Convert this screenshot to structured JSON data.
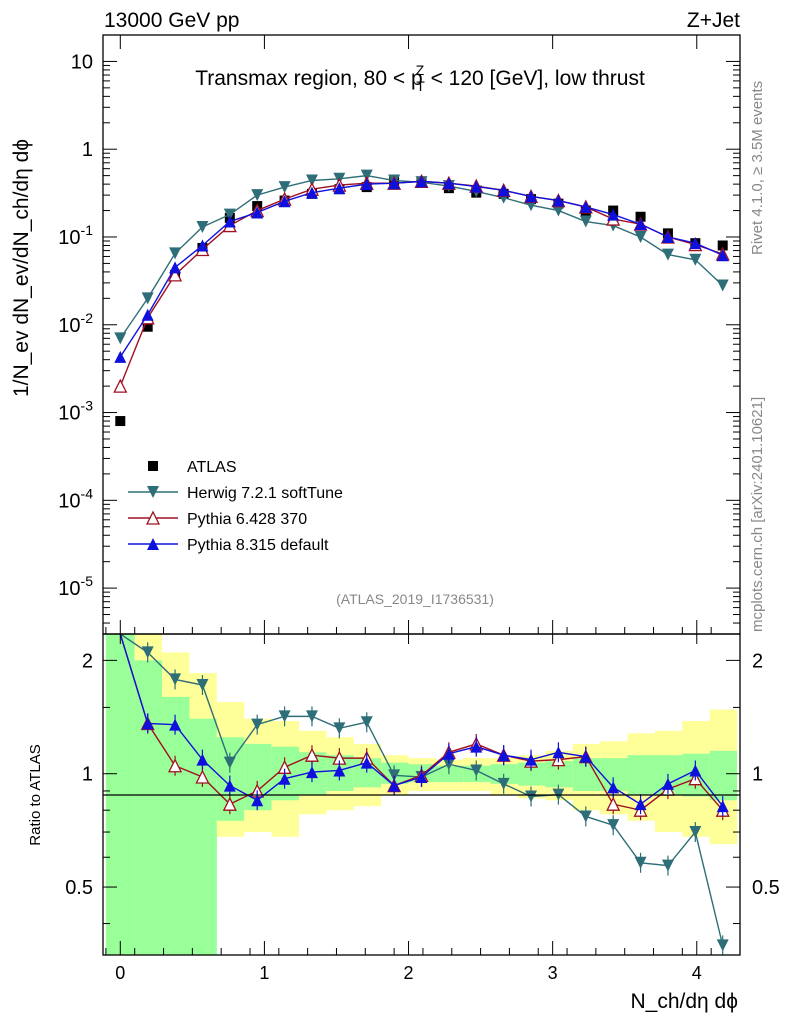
{
  "header": {
    "left": "13000 GeV pp",
    "right": "Z+Jet",
    "side_top": "Rivet 4.1.0, ≥ 3.5M events",
    "side_bottom": "mcplots.cern.ch [arXiv:2401.10621]"
  },
  "chart_data": {
    "type": "line",
    "title_pre": "Transmax region, 80 < p",
    "title_sup": "Z",
    "title_sub": "T",
    "title_post": " < 120 [GeV], low thrust",
    "analysis_id": "(ATLAS_2019_I1736531)",
    "xlabel": "N_ch/dη dϕ",
    "ylabel": "1/N_ev dN_ev/dN_ch/dη dϕ",
    "ratio_ylabel": "Ratio to ATLAS",
    "xlim": [
      -0.12,
      4.3
    ],
    "ylim": [
      3e-06,
      20
    ],
    "ratio_ylim": [
      0.33,
      2.35
    ],
    "yscale": "log",
    "x_ticks": [
      "0",
      "1",
      "2",
      "3",
      "4"
    ],
    "y_ticks": [
      "10",
      "1",
      "10^-1",
      "10^-2",
      "10^-3",
      "10^-4",
      "10^-5"
    ],
    "ratio_ticks": [
      "0.5",
      "1",
      "2"
    ],
    "x": [
      0.0,
      0.19,
      0.38,
      0.57,
      0.76,
      0.95,
      1.14,
      1.33,
      1.52,
      1.71,
      1.9,
      2.09,
      2.28,
      2.47,
      2.66,
      2.85,
      3.04,
      3.23,
      3.42,
      3.61,
      3.8,
      3.99,
      4.18
    ],
    "series": [
      {
        "name": "ATLAS",
        "color": "#000000",
        "marker": "square",
        "values": [
          0.0008,
          0.0095,
          0.037,
          0.075,
          0.165,
          0.225,
          0.26,
          0.31,
          0.35,
          0.37,
          0.44,
          0.43,
          0.36,
          0.32,
          0.31,
          0.27,
          0.24,
          0.2,
          0.2,
          0.17,
          0.11,
          0.085,
          0.08
        ]
      },
      {
        "name": "Herwig 7.2.1 softTune",
        "color": "#2e6e78",
        "marker": "triangle-down",
        "values": [
          0.007,
          0.02,
          0.065,
          0.13,
          0.18,
          0.3,
          0.37,
          0.44,
          0.46,
          0.5,
          0.44,
          0.42,
          0.38,
          0.33,
          0.28,
          0.23,
          0.2,
          0.15,
          0.135,
          0.1,
          0.063,
          0.055,
          0.028
        ],
        "ratio": [
          2.4,
          2.1,
          1.78,
          1.72,
          1.07,
          1.35,
          1.42,
          1.42,
          1.32,
          1.37,
          0.99,
          0.98,
          1.06,
          1.02,
          0.94,
          0.87,
          0.88,
          0.77,
          0.73,
          0.58,
          0.57,
          0.7,
          0.35
        ]
      },
      {
        "name": "Pythia 6.428 370",
        "color": "#a01020",
        "marker": "triangle-up-open",
        "values": [
          0.002,
          0.012,
          0.037,
          0.072,
          0.135,
          0.2,
          0.27,
          0.35,
          0.39,
          0.41,
          0.41,
          0.43,
          0.41,
          0.38,
          0.34,
          0.29,
          0.26,
          0.22,
          0.16,
          0.14,
          0.1,
          0.082,
          0.064
        ],
        "ratio": [
          2.4,
          1.36,
          1.05,
          0.98,
          0.83,
          0.9,
          1.04,
          1.12,
          1.1,
          1.1,
          0.93,
          0.99,
          1.14,
          1.2,
          1.12,
          1.08,
          1.09,
          1.11,
          0.83,
          0.8,
          0.91,
          0.97,
          0.8
        ]
      },
      {
        "name": "Pythia 8.315 default",
        "color": "#1010dd",
        "marker": "triangle-up",
        "values": [
          0.0043,
          0.013,
          0.045,
          0.08,
          0.15,
          0.19,
          0.255,
          0.32,
          0.36,
          0.4,
          0.41,
          0.43,
          0.41,
          0.375,
          0.34,
          0.29,
          0.26,
          0.22,
          0.18,
          0.14,
          0.1,
          0.085,
          0.062
        ],
        "ratio": [
          2.4,
          1.36,
          1.35,
          1.09,
          0.93,
          0.85,
          0.97,
          1.01,
          1.02,
          1.07,
          0.93,
          0.98,
          1.13,
          1.18,
          1.12,
          1.09,
          1.14,
          1.11,
          0.92,
          0.83,
          0.94,
          1.02,
          0.82
        ]
      }
    ],
    "bands": {
      "x_edges": [
        -0.1,
        0.1,
        0.29,
        0.48,
        0.67,
        0.86,
        1.05,
        1.24,
        1.43,
        1.62,
        1.81,
        2.0,
        2.19,
        2.38,
        2.57,
        2.76,
        2.95,
        3.14,
        3.33,
        3.52,
        3.71,
        3.9,
        4.09,
        4.28
      ],
      "inner_low": [
        0.33,
        0.33,
        0.33,
        0.33,
        0.75,
        0.8,
        0.85,
        0.88,
        0.9,
        0.92,
        0.94,
        0.95,
        0.95,
        0.95,
        0.94,
        0.93,
        0.92,
        0.9,
        0.9,
        0.88,
        0.88,
        0.87,
        0.85
      ],
      "inner_high": [
        2.35,
        2.0,
        1.6,
        1.4,
        1.25,
        1.2,
        1.18,
        1.14,
        1.12,
        1.1,
        1.07,
        1.06,
        1.05,
        1.05,
        1.06,
        1.07,
        1.08,
        1.1,
        1.1,
        1.12,
        1.12,
        1.13,
        1.15
      ],
      "outer_low": [
        0.33,
        0.33,
        0.38,
        0.64,
        0.68,
        0.7,
        0.68,
        0.78,
        0.8,
        0.82,
        0.88,
        0.9,
        0.9,
        0.9,
        0.88,
        0.86,
        0.85,
        0.8,
        0.78,
        0.75,
        0.7,
        0.68,
        0.65
      ],
      "outer_high": [
        2.35,
        2.35,
        2.1,
        1.85,
        1.55,
        1.4,
        1.38,
        1.3,
        1.25,
        1.2,
        1.12,
        1.1,
        1.09,
        1.1,
        1.1,
        1.12,
        1.15,
        1.2,
        1.22,
        1.28,
        1.3,
        1.38,
        1.48
      ],
      "inner_color": "#99ff99",
      "outer_color": "#ffff99"
    }
  }
}
